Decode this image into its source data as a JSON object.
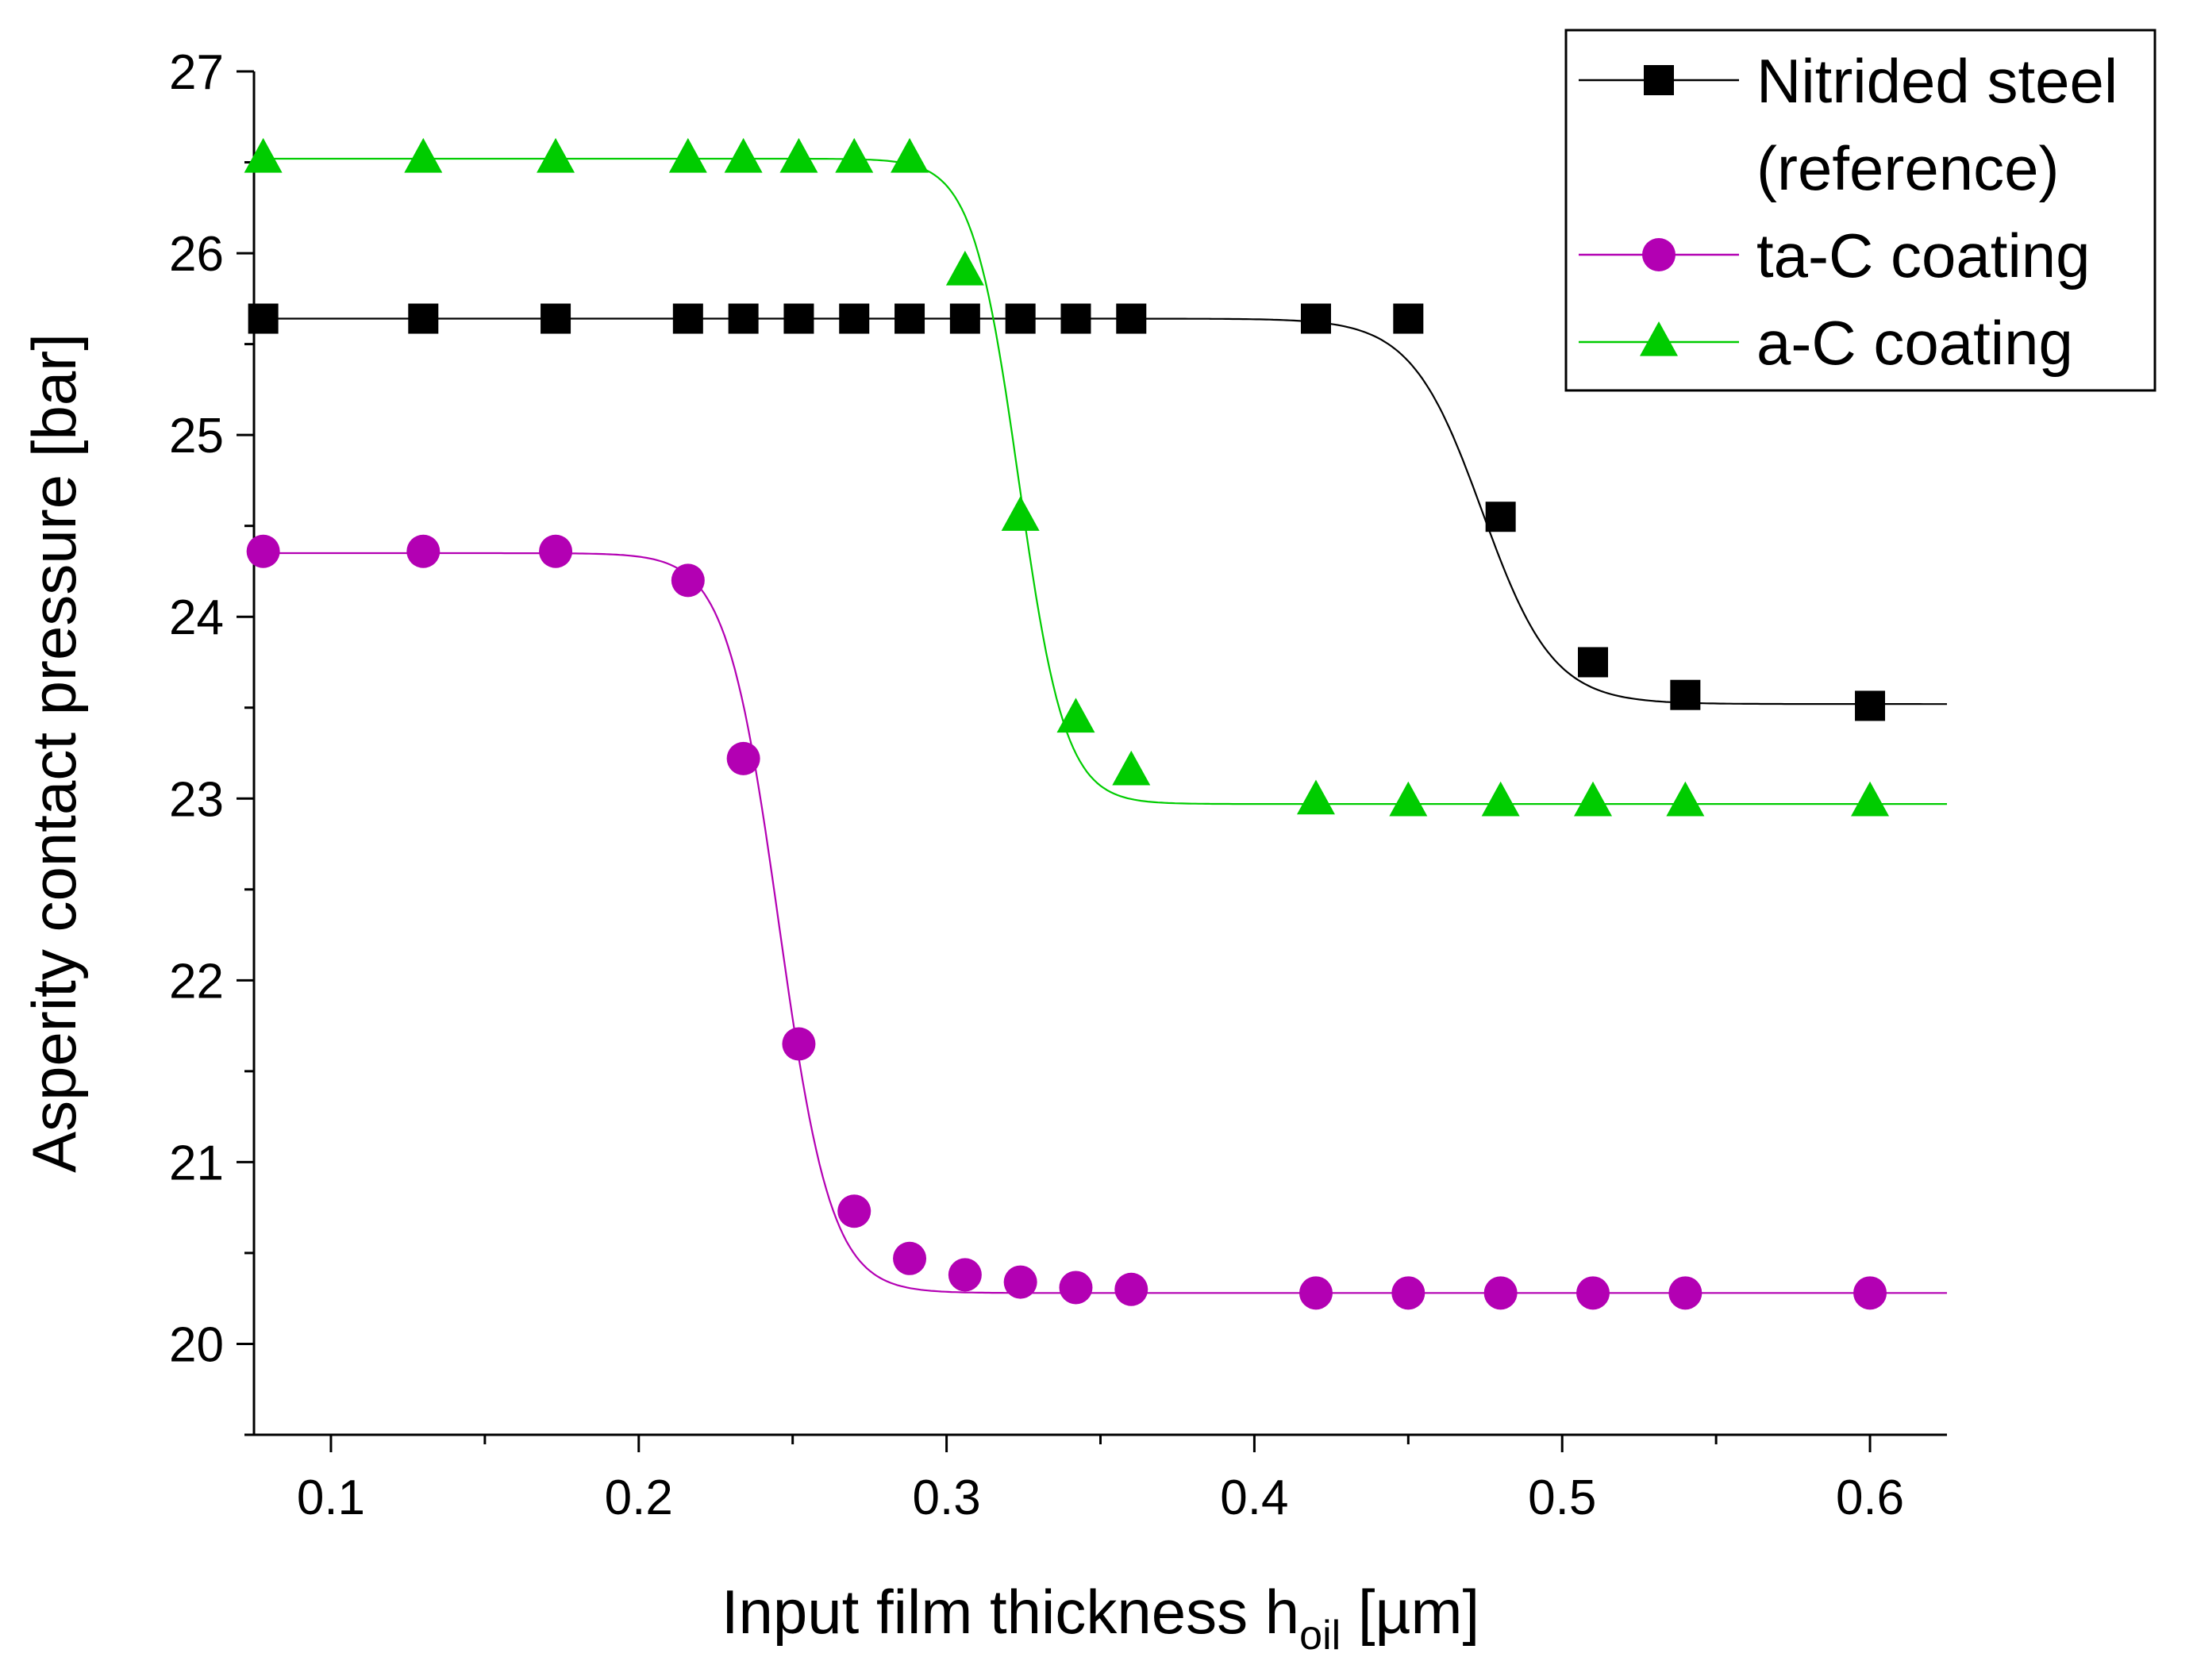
{
  "chart_data": {
    "type": "line",
    "title": "",
    "xlabel": {
      "main": "Input film thickness h",
      "sub": "oil",
      "unit": " [µm]"
    },
    "ylabel": "Asperity contact pressure [bar]",
    "xlim": [
      0.075,
      0.625
    ],
    "ylim": [
      19.5,
      27.0
    ],
    "xticks": [
      0.1,
      0.2,
      0.3,
      0.4,
      0.5,
      0.6
    ],
    "xtick_labels": [
      "0.1",
      "0.2",
      "0.3",
      "0.4",
      "0.5",
      "0.6"
    ],
    "yticks": [
      20,
      21,
      22,
      23,
      24,
      25,
      26,
      27
    ],
    "ytick_labels": [
      "20",
      "21",
      "22",
      "23",
      "24",
      "25",
      "26",
      "27"
    ],
    "grid": false,
    "legend_position": "top-right",
    "series": [
      {
        "name": "Nitrided steel (reference)",
        "legend_lines": [
          "Nitrided steel",
          "(reference)"
        ],
        "color": "#000000",
        "marker": "square",
        "fit": {
          "high": 25.64,
          "low": 23.52,
          "x0": 0.474,
          "width": 0.0115
        },
        "points": [
          [
            0.078,
            25.64
          ],
          [
            0.13,
            25.64
          ],
          [
            0.173,
            25.64
          ],
          [
            0.216,
            25.64
          ],
          [
            0.234,
            25.64
          ],
          [
            0.252,
            25.64
          ],
          [
            0.27,
            25.64
          ],
          [
            0.288,
            25.64
          ],
          [
            0.306,
            25.64
          ],
          [
            0.324,
            25.64
          ],
          [
            0.342,
            25.64
          ],
          [
            0.36,
            25.64
          ],
          [
            0.42,
            25.64
          ],
          [
            0.45,
            25.64
          ],
          [
            0.48,
            24.55
          ],
          [
            0.51,
            23.75
          ],
          [
            0.54,
            23.57
          ],
          [
            0.6,
            23.51
          ]
        ]
      },
      {
        "name": "ta-C coating",
        "legend_lines": [
          "ta-C coating"
        ],
        "color": "#b300b3",
        "marker": "circle",
        "fit": {
          "high": 24.35,
          "low": 20.28,
          "x0": 0.2455,
          "width": 0.0085
        },
        "points": [
          [
            0.078,
            24.36
          ],
          [
            0.13,
            24.36
          ],
          [
            0.173,
            24.36
          ],
          [
            0.216,
            24.2
          ],
          [
            0.234,
            23.22
          ],
          [
            0.252,
            21.65
          ],
          [
            0.27,
            20.73
          ],
          [
            0.288,
            20.47
          ],
          [
            0.306,
            20.38
          ],
          [
            0.324,
            20.34
          ],
          [
            0.342,
            20.31
          ],
          [
            0.36,
            20.3
          ],
          [
            0.42,
            20.28
          ],
          [
            0.45,
            20.28
          ],
          [
            0.48,
            20.28
          ],
          [
            0.51,
            20.28
          ],
          [
            0.54,
            20.28
          ],
          [
            0.6,
            20.28
          ]
        ]
      },
      {
        "name": "a-C coating",
        "legend_lines": [
          "a-C coating"
        ],
        "color": "#00cc00",
        "marker": "triangle",
        "fit": {
          "high": 26.52,
          "low": 22.97,
          "x0": 0.3235,
          "width": 0.0075
        },
        "points": [
          [
            0.078,
            26.52
          ],
          [
            0.13,
            26.52
          ],
          [
            0.173,
            26.52
          ],
          [
            0.216,
            26.52
          ],
          [
            0.234,
            26.52
          ],
          [
            0.252,
            26.52
          ],
          [
            0.27,
            26.52
          ],
          [
            0.288,
            26.52
          ],
          [
            0.306,
            25.9
          ],
          [
            0.324,
            24.55
          ],
          [
            0.342,
            23.44
          ],
          [
            0.36,
            23.15
          ],
          [
            0.42,
            22.99
          ],
          [
            0.45,
            22.98
          ],
          [
            0.48,
            22.98
          ],
          [
            0.51,
            22.98
          ],
          [
            0.54,
            22.98
          ],
          [
            0.6,
            22.98
          ]
        ]
      }
    ]
  }
}
